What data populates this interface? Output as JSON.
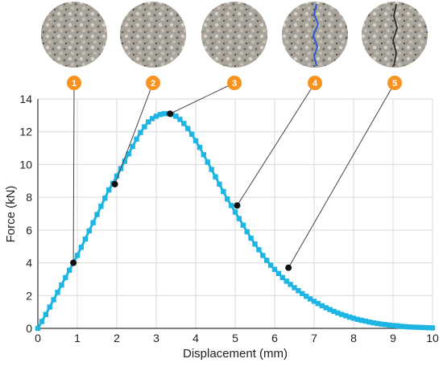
{
  "chart_data": {
    "type": "line",
    "xlabel": "Displacement (mm)",
    "ylabel": "Force (kN)",
    "xlim": [
      0,
      10
    ],
    "ylim": [
      0,
      14
    ],
    "xticks": [
      0,
      1,
      2,
      3,
      4,
      5,
      6,
      7,
      8,
      9,
      10
    ],
    "yticks": [
      0,
      2,
      4,
      6,
      8,
      10,
      12,
      14
    ],
    "grid": true,
    "series": [
      {
        "color": "#1fb5e3",
        "x": [
          0,
          0.1,
          0.2,
          0.3,
          0.4,
          0.5,
          0.6,
          0.7,
          0.8,
          0.9,
          1.0,
          1.1,
          1.2,
          1.3,
          1.4,
          1.5,
          1.6,
          1.7,
          1.8,
          1.9,
          2.0,
          2.1,
          2.2,
          2.3,
          2.4,
          2.5,
          2.6,
          2.7,
          2.8,
          2.9,
          3.0,
          3.1,
          3.2,
          3.3,
          3.4,
          3.5,
          3.6,
          3.7,
          3.8,
          3.9,
          4.0,
          4.1,
          4.2,
          4.3,
          4.4,
          4.5,
          4.6,
          4.7,
          4.8,
          4.9,
          5.0,
          5.1,
          5.2,
          5.3,
          5.4,
          5.5,
          5.6,
          5.7,
          5.8,
          5.9,
          6.0,
          6.1,
          6.2,
          6.3,
          6.4,
          6.5,
          6.6,
          6.7,
          6.8,
          6.9,
          7.0,
          7.1,
          7.2,
          7.3,
          7.4,
          7.5,
          7.6,
          7.7,
          7.8,
          7.9,
          8.0,
          8.1,
          8.2,
          8.3,
          8.4,
          8.5,
          8.6,
          8.7,
          8.8,
          8.9,
          9.0,
          9.1,
          9.2,
          9.3,
          9.4,
          9.5,
          9.6,
          9.7,
          9.8,
          9.9,
          10.0
        ],
        "y": [
          0,
          0.42,
          0.85,
          1.3,
          1.75,
          2.2,
          2.65,
          3.1,
          3.55,
          4.0,
          4.45,
          4.95,
          5.45,
          5.95,
          6.45,
          6.95,
          7.45,
          7.95,
          8.45,
          8.85,
          9.3,
          9.75,
          10.2,
          10.65,
          11.1,
          11.55,
          11.95,
          12.3,
          12.6,
          12.8,
          12.95,
          13.05,
          13.1,
          13.1,
          13.05,
          12.95,
          12.75,
          12.5,
          12.2,
          11.85,
          11.45,
          11.05,
          10.6,
          10.15,
          9.7,
          9.25,
          8.8,
          8.35,
          7.9,
          7.5,
          7.1,
          6.7,
          6.3,
          5.9,
          5.5,
          5.15,
          4.8,
          4.45,
          4.15,
          3.85,
          3.6,
          3.35,
          3.1,
          2.88,
          2.68,
          2.48,
          2.3,
          2.12,
          1.96,
          1.8,
          1.65,
          1.52,
          1.38,
          1.26,
          1.15,
          1.04,
          0.94,
          0.85,
          0.77,
          0.69,
          0.62,
          0.55,
          0.49,
          0.44,
          0.39,
          0.34,
          0.3,
          0.26,
          0.23,
          0.2,
          0.17,
          0.15,
          0.13,
          0.11,
          0.09,
          0.08,
          0.07,
          0.06,
          0.05,
          0.04,
          0.03
        ]
      }
    ],
    "annotations": [
      {
        "label": "1",
        "x": 0.9,
        "y": 4.0
      },
      {
        "label": "2",
        "x": 1.95,
        "y": 8.8
      },
      {
        "label": "3",
        "x": 3.35,
        "y": 13.1
      },
      {
        "label": "4",
        "x": 5.05,
        "y": 7.5
      },
      {
        "label": "5",
        "x": 6.35,
        "y": 3.7
      }
    ],
    "annotation_color": "#f7931e"
  }
}
